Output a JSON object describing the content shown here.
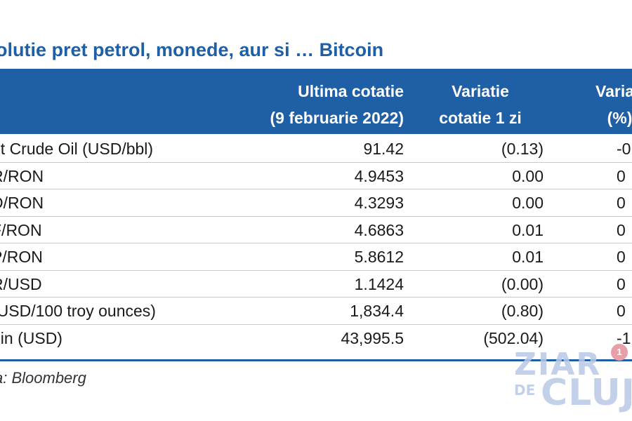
{
  "title": "olutie pret petrol, monede, aur si … Bitcoin",
  "header": {
    "last_line1": "Ultima cotatie",
    "last_line2": "(9 februarie 2022)",
    "var_line1": "Variatie",
    "var_line2": "cotatie 1 zi",
    "pct_line1": "Varia",
    "pct_line2": "(%)"
  },
  "rows": [
    {
      "name": "nt Crude Oil (USD/bbl)",
      "last": "91.42",
      "var": "(0.13)",
      "pct": "-0"
    },
    {
      "name": "R/RON",
      "last": "4.9453",
      "var": "0.00",
      "pct": "0"
    },
    {
      "name": "D/RON",
      "last": "4.3293",
      "var": "0.00",
      "pct": "0"
    },
    {
      "name": "F/RON",
      "last": "4.6863",
      "var": "0.01",
      "pct": "0"
    },
    {
      "name": "P/RON",
      "last": "5.8612",
      "var": "0.01",
      "pct": "0"
    },
    {
      "name": "R/USD",
      "last": "1.1424",
      "var": "(0.00)",
      "pct": "0"
    },
    {
      "name": "(USD/100 troy ounces)",
      "last": "1,834.4",
      "var": "(0.80)",
      "pct": "0"
    },
    {
      "name": "oin (USD)",
      "last": "43,995.5",
      "var": "(502.04)",
      "pct": "-1"
    }
  ],
  "source": "a: Bloomberg",
  "watermark": {
    "line1": "ZIAR",
    "line2": "DE",
    "line3": "CLUJ",
    "badge": "1"
  },
  "colors": {
    "brand_blue": "#1f5fa6"
  }
}
